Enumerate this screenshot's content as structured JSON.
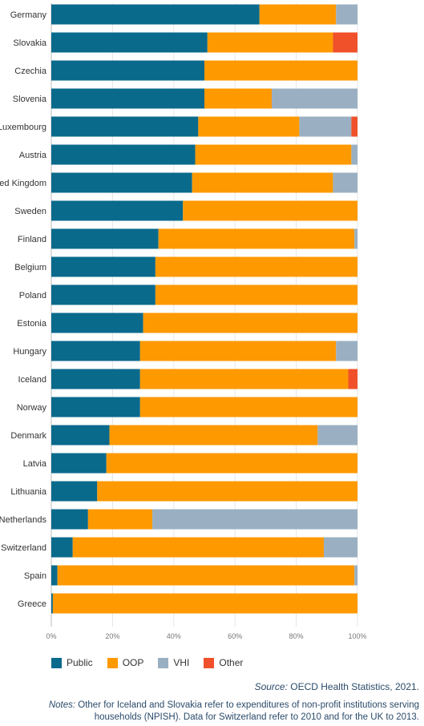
{
  "chart_data": {
    "type": "bar",
    "orientation": "horizontal",
    "stacked": true,
    "percent": true,
    "categories": [
      "Germany",
      "Slovakia",
      "Czechia",
      "Slovenia",
      "Luxembourg",
      "Austria",
      "United Kingdom",
      "Sweden",
      "Finland",
      "Belgium",
      "Poland",
      "Estonia",
      "Hungary",
      "Iceland",
      "Norway",
      "Denmark",
      "Latvia",
      "Lithuania",
      "Netherlands",
      "Switzerland",
      "Spain",
      "Greece"
    ],
    "series": [
      {
        "name": "Public",
        "color": "#0a6a8c",
        "values": [
          68,
          51,
          50,
          50,
          48,
          47,
          46,
          43,
          35,
          34,
          34,
          30,
          29,
          29,
          29,
          19,
          18,
          15,
          12,
          7,
          2,
          0.5
        ]
      },
      {
        "name": "OOP",
        "color": "#ff9900",
        "values": [
          25,
          41,
          50,
          22,
          33,
          51,
          46,
          57,
          64,
          66,
          66,
          70,
          64,
          68,
          71,
          68,
          82,
          85,
          21,
          82,
          97,
          99.5
        ]
      },
      {
        "name": "VHI",
        "color": "#9ab0c2",
        "values": [
          7,
          0,
          0,
          28,
          17,
          2,
          8,
          0,
          1,
          0,
          0,
          0,
          7,
          0,
          0,
          13,
          0,
          0,
          67,
          11,
          1,
          0
        ]
      },
      {
        "name": "Other",
        "color": "#f0502a",
        "values": [
          0,
          8,
          0,
          0,
          2,
          0,
          0,
          0,
          0,
          0,
          0,
          0,
          0,
          3,
          0,
          0,
          0,
          0,
          0,
          0,
          0,
          0
        ]
      }
    ],
    "xlim": [
      0,
      100
    ],
    "ticks": [
      "0%",
      "20%",
      "40%",
      "60%",
      "80%",
      "100%"
    ],
    "legend_position": "bottom"
  },
  "source": {
    "label": "Source:",
    "text": "OECD Health Statistics, 2021."
  },
  "notes": {
    "label": "Notes:",
    "text": "Other for Iceland and Slovakia refer to expenditures of non-profit institutions serving households (NPISH). Data for Switzerland refer to 2010 and for the UK to 2013."
  }
}
